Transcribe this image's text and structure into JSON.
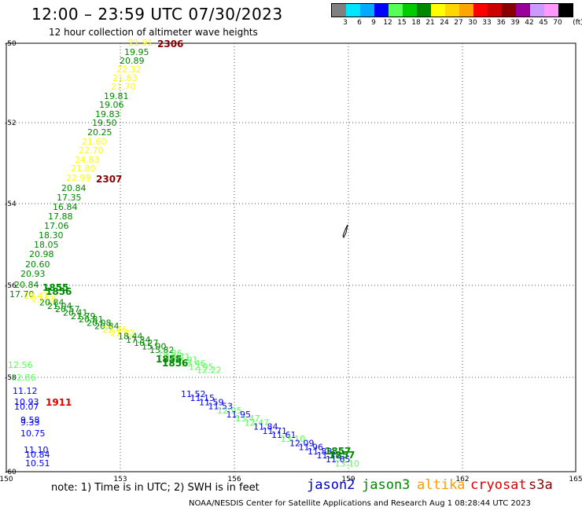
{
  "title": "12:00 – 23:59 UTC 07/30/2023",
  "subtitle": "12 hour collection of altimeter wave heights",
  "legend": {
    "colors": [
      "#808080",
      "#00e5ff",
      "#00aaff",
      "#0000ff",
      "#55ff55",
      "#00cc00",
      "#008800",
      "#ffff00",
      "#ffd700",
      "#ffa500",
      "#ff0000",
      "#cc0000",
      "#880000",
      "#990099",
      "#cc99ff",
      "#ff99ff",
      "#000000"
    ],
    "labels": [
      "3",
      "6",
      "9",
      "12",
      "15",
      "18",
      "21",
      "24",
      "27",
      "30",
      "33",
      "36",
      "39",
      "42",
      "45",
      "70",
      "(ft)"
    ]
  },
  "axes": {
    "y_labels": [
      "-50",
      "-52",
      "-54",
      "-56",
      "-58",
      "-60"
    ],
    "x_labels": [
      "150",
      "153",
      "156",
      "159",
      "162",
      "165"
    ]
  },
  "note": "note: 1) Time is in UTC; 2) SWH is in feet",
  "satellites": [
    {
      "name": "jason2",
      "color": "#0000cc"
    },
    {
      "name": "jason3",
      "color": "#008800"
    },
    {
      "name": "altika",
      "color": "#ff9900"
    },
    {
      "name": "cryosat",
      "color": "#dd0000"
    },
    {
      "name": "s3a",
      "color": "#880000"
    }
  ],
  "credit": "NOAA/NESDIS Center for Satellite Applications and Research    Aug  1 08:28:44 UTC 2023",
  "map_data": {
    "track1_values": [
      {
        "v": "21.91",
        "c": "#ffff00"
      },
      {
        "v": "19.95",
        "c": "#008800"
      },
      {
        "v": "20.89",
        "c": "#008800"
      },
      {
        "v": "22.32",
        "c": "#ffff00"
      },
      {
        "v": "21.83",
        "c": "#ffff00"
      },
      {
        "v": "21.70",
        "c": "#ffff00"
      },
      {
        "v": "19.81",
        "c": "#008800"
      },
      {
        "v": "19.06",
        "c": "#008800"
      },
      {
        "v": "19.83",
        "c": "#008800"
      },
      {
        "v": "19.50",
        "c": "#008800"
      },
      {
        "v": "20.25",
        "c": "#008800"
      },
      {
        "v": "21.60",
        "c": "#ffff00"
      },
      {
        "v": "22.70",
        "c": "#ffff00"
      },
      {
        "v": "24.83",
        "c": "#ffff00"
      },
      {
        "v": "21.80",
        "c": "#ffff00"
      },
      {
        "v": "22.99",
        "c": "#ffff00"
      },
      {
        "v": "20.84",
        "c": "#008800"
      },
      {
        "v": "17.35",
        "c": "#008800"
      },
      {
        "v": "16.84",
        "c": "#008800"
      },
      {
        "v": "17.88",
        "c": "#008800"
      },
      {
        "v": "17.06",
        "c": "#008800"
      },
      {
        "v": "18.30",
        "c": "#008800"
      },
      {
        "v": "18.05",
        "c": "#008800"
      },
      {
        "v": "20.98",
        "c": "#008800"
      },
      {
        "v": "20.60",
        "c": "#008800"
      },
      {
        "v": "20.93",
        "c": "#008800"
      },
      {
        "v": "20.84",
        "c": "#008800"
      },
      {
        "v": "17.70",
        "c": "#008800"
      }
    ],
    "track2_values": [
      {
        "v": "29.47",
        "c": "#ffff00"
      },
      {
        "v": "23.58",
        "c": "#ffff00"
      },
      {
        "v": "20.84",
        "c": "#008800"
      },
      {
        "v": "21.04",
        "c": "#008800"
      },
      {
        "v": "20.57",
        "c": "#008800"
      },
      {
        "v": "20.41",
        "c": "#008800"
      },
      {
        "v": "21.79",
        "c": "#008800"
      },
      {
        "v": "20.81",
        "c": "#008800"
      },
      {
        "v": "20.08",
        "c": "#008800"
      },
      {
        "v": "20.84",
        "c": "#008800"
      },
      {
        "v": "22.46",
        "c": "#ffff00"
      },
      {
        "v": "21.32",
        "c": "#ffff00"
      },
      {
        "v": "18.44",
        "c": "#008800"
      },
      {
        "v": "17.34",
        "c": "#008800"
      },
      {
        "v": "16.27",
        "c": "#008800"
      },
      {
        "v": "15.90",
        "c": "#008800"
      },
      {
        "v": "15.82",
        "c": "#008800"
      },
      {
        "v": "14.86",
        "c": "#55ff55"
      },
      {
        "v": "14.71",
        "c": "#55ff55"
      },
      {
        "v": "13.91",
        "c": "#55ff55"
      },
      {
        "v": "13.46",
        "c": "#55ff55"
      },
      {
        "v": "12.95",
        "c": "#55ff55"
      },
      {
        "v": "12.22",
        "c": "#55ff55"
      }
    ],
    "track3_values": [
      {
        "v": "11.52",
        "c": "#0000ff"
      },
      {
        "v": "11.15",
        "c": "#0000ff"
      },
      {
        "v": "11.59",
        "c": "#0000ff"
      },
      {
        "v": "11.53",
        "c": "#0000ff"
      },
      {
        "v": "12.95",
        "c": "#55ff55"
      },
      {
        "v": "11.95",
        "c": "#0000ff"
      },
      {
        "v": "13.47",
        "c": "#55ff55"
      },
      {
        "v": "12.47",
        "c": "#55ff55"
      },
      {
        "v": "11.84",
        "c": "#0000ff"
      },
      {
        "v": "11.71",
        "c": "#0000ff"
      },
      {
        "v": "11.61",
        "c": "#0000ff"
      },
      {
        "v": "13.10",
        "c": "#55ff55"
      },
      {
        "v": "12.09",
        "c": "#0000ff"
      },
      {
        "v": "11.96",
        "c": "#0000ff"
      },
      {
        "v": "11.83",
        "c": "#0000ff"
      },
      {
        "v": "11.72",
        "c": "#0000ff"
      },
      {
        "v": "11.65",
        "c": "#0000ff"
      },
      {
        "v": "13.10",
        "c": "#55ff55"
      }
    ],
    "track4_values": [
      {
        "v": "12.56",
        "c": "#55ff55"
      },
      {
        "v": "12.86",
        "c": "#55ff55"
      },
      {
        "v": "11.12",
        "c": "#0000ff"
      },
      {
        "v": "10.93",
        "c": "#0000ff"
      },
      {
        "v": "10.07",
        "c": "#0000ff"
      },
      {
        "v": "9.58",
        "c": "#0000ff"
      },
      {
        "v": "9.33",
        "c": "#0000ff"
      },
      {
        "v": "10.75",
        "c": "#0000ff"
      },
      {
        "v": "11.10",
        "c": "#0000ff"
      },
      {
        "v": "10.84",
        "c": "#0000ff"
      },
      {
        "v": "10.51",
        "c": "#0000ff"
      }
    ],
    "time_labels": [
      {
        "v": "2306",
        "c": "#880000"
      },
      {
        "v": "2307",
        "c": "#880000"
      },
      {
        "v": "1855",
        "c": "#008800"
      },
      {
        "v": "1856",
        "c": "#008800"
      },
      {
        "v": "1855",
        "c": "#008800"
      },
      {
        "v": "1856",
        "c": "#008800"
      },
      {
        "v": "1911",
        "c": "#dd0000"
      },
      {
        "v": "1857",
        "c": "#008800"
      },
      {
        "v": "1857",
        "c": "#008800"
      }
    ]
  }
}
